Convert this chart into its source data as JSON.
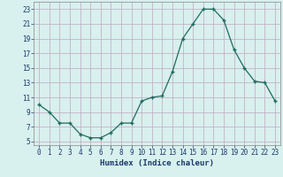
{
  "x": [
    0,
    1,
    2,
    3,
    4,
    5,
    6,
    7,
    8,
    9,
    10,
    11,
    12,
    13,
    14,
    15,
    16,
    17,
    18,
    19,
    20,
    21,
    22,
    23
  ],
  "y": [
    10.0,
    9.0,
    7.5,
    7.5,
    6.0,
    5.5,
    5.5,
    6.2,
    7.5,
    7.5,
    10.5,
    11.0,
    11.2,
    14.5,
    19.0,
    21.0,
    23.0,
    23.0,
    21.5,
    17.5,
    15.0,
    13.2,
    13.0,
    10.5
  ],
  "xlabel": "Humidex (Indice chaleur)",
  "xlim": [
    -0.5,
    23.5
  ],
  "ylim": [
    4.5,
    24.0
  ],
  "yticks": [
    5,
    7,
    9,
    11,
    13,
    15,
    17,
    19,
    21,
    23
  ],
  "xticks": [
    0,
    1,
    2,
    3,
    4,
    5,
    6,
    7,
    8,
    9,
    10,
    11,
    12,
    13,
    14,
    15,
    16,
    17,
    18,
    19,
    20,
    21,
    22,
    23
  ],
  "line_color": "#1e6b5e",
  "marker_color": "#1e6b5e",
  "bg_color": "#d8f0ee",
  "grid_color": "#c0a8c0",
  "label_color": "#1a3a6a",
  "tick_fontsize": 5.5,
  "xlabel_fontsize": 6.5
}
